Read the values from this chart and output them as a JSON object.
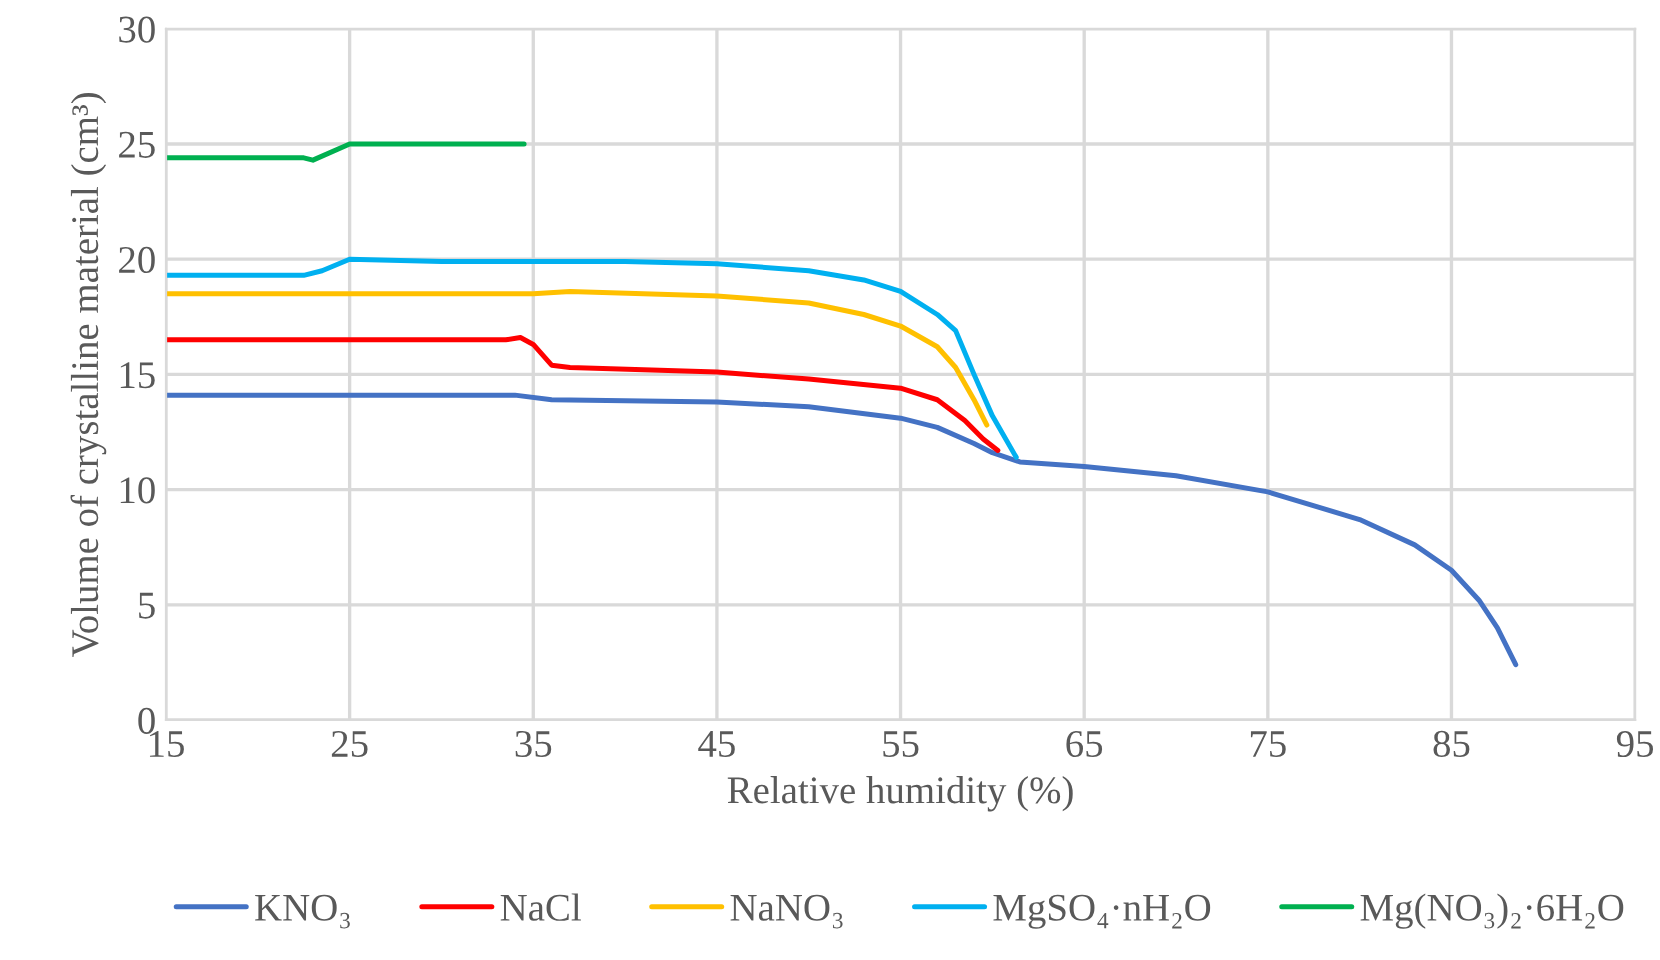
{
  "chart_data": {
    "type": "line",
    "xlabel": "Relative humidity (%)",
    "ylabel": "Volume of crystalline material (cm³)",
    "xlim": [
      15,
      95
    ],
    "xticks": [
      15,
      25,
      35,
      45,
      55,
      65,
      75,
      85,
      95
    ],
    "ylim": [
      0,
      30
    ],
    "yticks": [
      0,
      5,
      10,
      15,
      20,
      25,
      30
    ],
    "grid": true,
    "legend": "bottom",
    "marker": "none",
    "line_style": "solid",
    "series": [
      {
        "name": "KNO₃",
        "color": "#4472c4",
        "x": [
          15,
          34,
          36,
          45,
          50,
          55,
          57,
          59,
          60,
          61.5,
          65,
          70,
          75,
          80,
          83,
          85,
          86.5,
          87.5,
          88.5
        ],
        "values": [
          14.1,
          14.1,
          13.9,
          13.8,
          13.6,
          13.1,
          12.7,
          12.0,
          11.6,
          11.2,
          11.0,
          10.6,
          9.9,
          8.7,
          7.6,
          6.5,
          5.2,
          4.0,
          2.4
        ]
      },
      {
        "name": "NaCl",
        "color": "#ff0000",
        "x": [
          15,
          33.5,
          34.3,
          35,
          36,
          37,
          45,
          50,
          55,
          57,
          58.5,
          59.5,
          60.3
        ],
        "values": [
          16.5,
          16.5,
          16.6,
          16.3,
          15.4,
          15.3,
          15.1,
          14.8,
          14.4,
          13.9,
          13.0,
          12.2,
          11.7
        ]
      },
      {
        "name": "NaNO₃",
        "color": "#ffc000",
        "x": [
          15,
          35,
          37,
          45,
          50,
          53,
          55,
          57,
          58,
          59,
          59.7
        ],
        "values": [
          18.5,
          18.5,
          18.6,
          18.4,
          18.1,
          17.6,
          17.1,
          16.2,
          15.3,
          13.9,
          12.8
        ]
      },
      {
        "name": "MgSO₄·nH₂O",
        "color": "#00b0f0",
        "x": [
          15,
          22.5,
          23.5,
          25,
          30,
          40,
          45,
          50,
          53,
          55,
          57,
          58,
          59,
          60,
          61.3
        ],
        "values": [
          19.3,
          19.3,
          19.5,
          20.0,
          19.9,
          19.9,
          19.8,
          19.5,
          19.1,
          18.6,
          17.6,
          16.9,
          15.0,
          13.2,
          11.4
        ]
      },
      {
        "name": "Mg(NO₃)₂·6H₂O",
        "color": "#00b050",
        "x": [
          15,
          22.5,
          23,
          25,
          34.5
        ],
        "values": [
          24.4,
          24.4,
          24.3,
          25.0,
          25.0
        ]
      }
    ]
  }
}
